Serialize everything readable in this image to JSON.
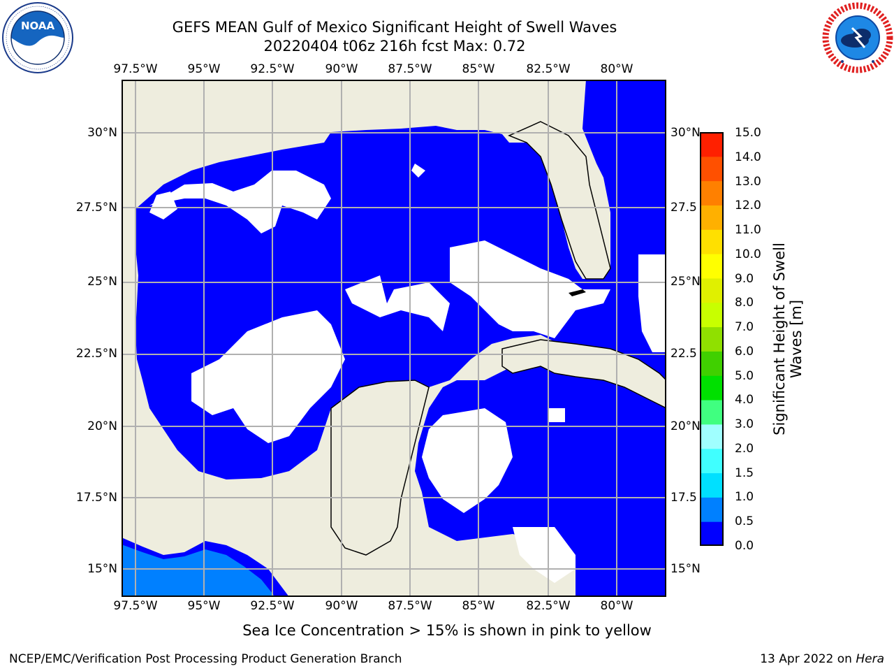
{
  "header": {
    "title_line1": "GEFS MEAN Gulf of Mexico Significant Height of Swell Waves",
    "title_line2": "20220404 t06z 216h fcst   Max: 0.72"
  },
  "logos": {
    "left": {
      "name": "NOAA",
      "ring_text": "NATIONAL OCEANIC AND ATMOSPHERIC ADMINISTRATION · U.S. DEPARTMENT OF COMMERCE"
    },
    "right": {
      "name": "NATIONAL WEATHER SERVICE"
    }
  },
  "map": {
    "lon_labels": [
      "97.5°W",
      "95°W",
      "92.5°W",
      "90°W",
      "87.5°W",
      "85°W",
      "82.5°W",
      "80°W"
    ],
    "lat_labels_left": [
      "30°N",
      "27.5°N",
      "25°N",
      "22.5°N",
      "20°N",
      "17.5°N",
      "15°N"
    ],
    "lat_labels_right": [
      "30°N",
      "27.5",
      "25°N",
      "22.5",
      "20°N",
      "17.5",
      "15°N"
    ],
    "colors": {
      "land": "#eeedde",
      "swell_low": "#0000ff",
      "swell_mid": "#0080ff",
      "no_data": "#ffffff",
      "grid": "#b0b0b0"
    }
  },
  "colorbar": {
    "label": "Significant Height of Swell Waves [m]",
    "ticks": [
      "15.0",
      "14.0",
      "13.0",
      "12.0",
      "11.0",
      "10.0",
      "9.0",
      "8.0",
      "7.0",
      "6.0",
      "5.0",
      "4.0",
      "3.0",
      "2.0",
      "1.5",
      "1.0",
      "0.5",
      "0.0"
    ],
    "colors": [
      "#0000ff",
      "#0080ff",
      "#00e0ff",
      "#40ffff",
      "#a0ffff",
      "#40ff80",
      "#00e000",
      "#40d000",
      "#90e000",
      "#c8ff00",
      "#e0f000",
      "#ffff00",
      "#ffe000",
      "#ffb000",
      "#ff8000",
      "#ff5000",
      "#ff2000"
    ]
  },
  "note": "Sea Ice Concentration > 15% is shown in pink to yellow",
  "footer": {
    "left": "NCEP/EMC/Verification Post Processing Product Generation Branch",
    "right_prefix": "13 Apr 2022 on ",
    "right_host": "Hera"
  }
}
